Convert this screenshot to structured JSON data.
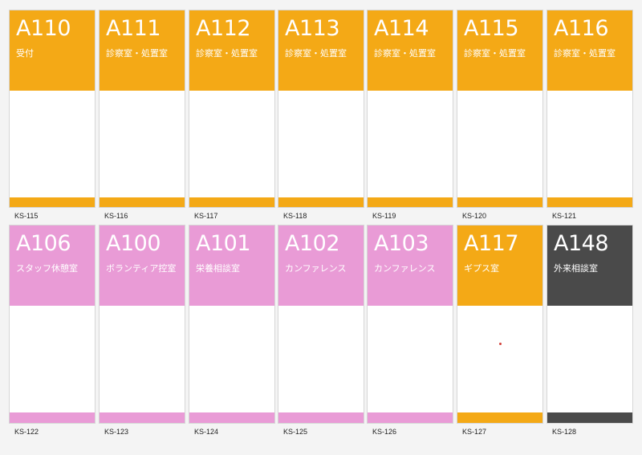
{
  "colors": {
    "orange": "#f4a916",
    "pink": "#e99bd6",
    "gray": "#4a4a4a"
  },
  "rows": [
    {
      "cards": [
        {
          "number": "A110",
          "label": "受付",
          "code": "KS-115",
          "color": "orange"
        },
        {
          "number": "A111",
          "label": "診察室・処置室",
          "code": "KS-116",
          "color": "orange"
        },
        {
          "number": "A112",
          "label": "診察室・処置室",
          "code": "KS-117",
          "color": "orange"
        },
        {
          "number": "A113",
          "label": "診察室・処置室",
          "code": "KS-118",
          "color": "orange"
        },
        {
          "number": "A114",
          "label": "診察室・処置室",
          "code": "KS-119",
          "color": "orange"
        },
        {
          "number": "A115",
          "label": "診察室・処置室",
          "code": "KS-120",
          "color": "orange"
        },
        {
          "number": "A116",
          "label": "診察室・処置室",
          "code": "KS-121",
          "color": "orange"
        }
      ]
    },
    {
      "cards": [
        {
          "number": "A106",
          "label": "スタッフ休憩室",
          "code": "KS-122",
          "color": "pink"
        },
        {
          "number": "A100",
          "label": "ボランティア控室",
          "code": "KS-123",
          "color": "pink"
        },
        {
          "number": "A101",
          "label": "栄養相談室",
          "code": "KS-124",
          "color": "pink"
        },
        {
          "number": "A102",
          "label": "カンファレンス",
          "code": "KS-125",
          "color": "pink"
        },
        {
          "number": "A103",
          "label": "カンファレンス",
          "code": "KS-126",
          "color": "pink"
        },
        {
          "number": "A117",
          "label": "ギプス室",
          "code": "KS-127",
          "color": "orange"
        },
        {
          "number": "A148",
          "label": "外来相談室",
          "code": "KS-128",
          "color": "gray"
        }
      ]
    }
  ]
}
